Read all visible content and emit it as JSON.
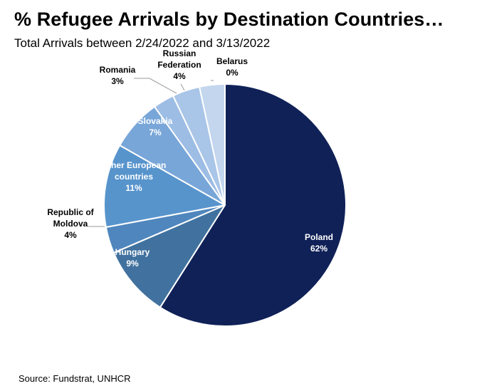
{
  "title": "% Refugee Arrivals by Destination Countries…",
  "subtitle": "Total Arrivals between 2/24/2022 and 3/13/2022",
  "source": "Source: Fundstrat, UNHCR",
  "chart_data": {
    "type": "pie",
    "slices": [
      {
        "label_lines": [
          "Poland",
          "62%"
        ],
        "value": 62,
        "color": "#0f2157",
        "label_color": "#ffffff"
      },
      {
        "label_lines": [
          "Hungary",
          "9%"
        ],
        "value": 9,
        "color": "#41729f",
        "label_color": "#ffffff"
      },
      {
        "label_lines": [
          "Republic of",
          "Moldova",
          "4%"
        ],
        "value": 4,
        "color": "#4f86bd",
        "label_color": "#000000"
      },
      {
        "label_lines": [
          "Other European",
          "countries",
          "11%"
        ],
        "value": 11,
        "color": "#5894cc",
        "label_color": "#ffffff"
      },
      {
        "label_lines": [
          "Slovakia",
          "7%"
        ],
        "value": 7,
        "color": "#78a6d8",
        "label_color": "#ffffff"
      },
      {
        "label_lines": [
          "Romania",
          "3%"
        ],
        "value": 3,
        "color": "#9dbde4",
        "label_color": "#000000"
      },
      {
        "label_lines": [
          "Russian",
          "Federation",
          "4%"
        ],
        "value": 4,
        "color": "#a9c5e7",
        "label_color": "#000000"
      },
      {
        "label_lines": [
          "Belarus",
          "0%"
        ],
        "value": 0,
        "color": "#c3d6ee",
        "label_color": "#000000"
      }
    ]
  }
}
